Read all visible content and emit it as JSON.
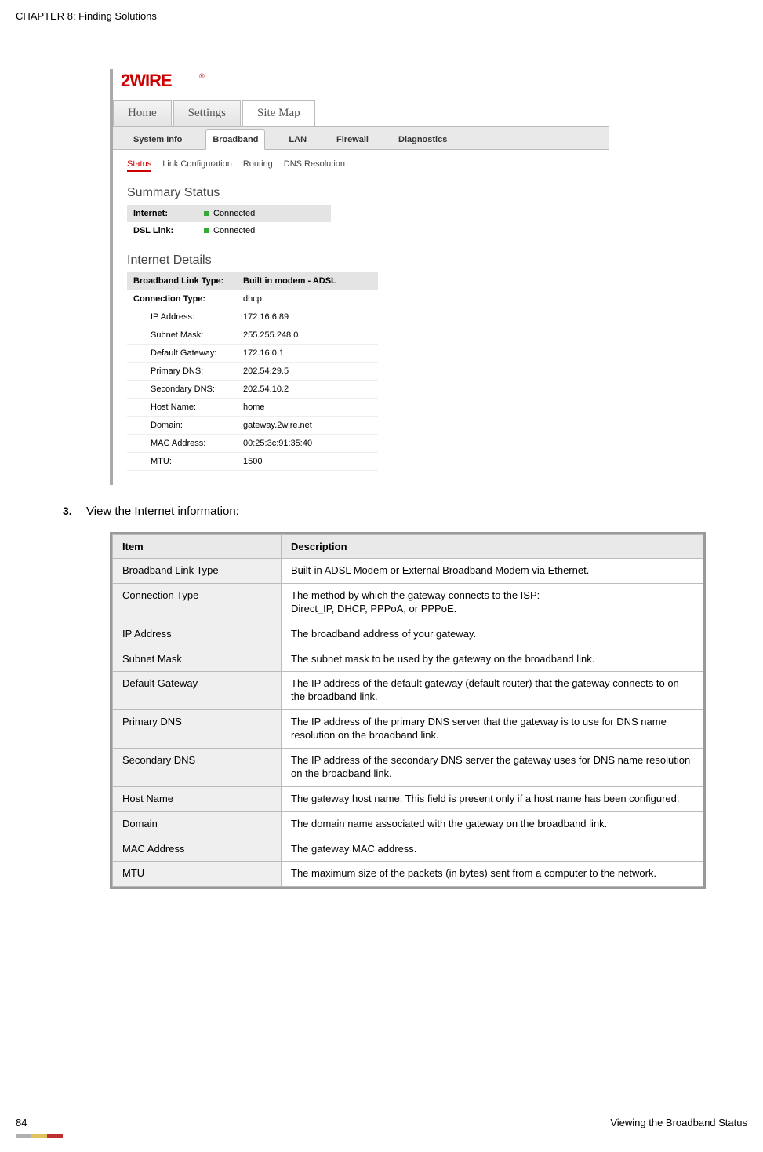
{
  "chapter_header": "CHAPTER 8: Finding Solutions",
  "logo_text": "2WIRE",
  "logo_color": "#cc0000",
  "top_tabs": {
    "home": "Home",
    "settings": "Settings",
    "sitemap": "Site Map"
  },
  "sub_tabs": {
    "system_info": "System Info",
    "broadband": "Broadband",
    "lan": "LAN",
    "firewall": "Firewall",
    "diagnostics": "Diagnostics"
  },
  "mini_tabs": {
    "status": "Status",
    "link_config": "Link Configuration",
    "routing": "Routing",
    "dns": "DNS Resolution"
  },
  "summary_title": "Summary Status",
  "summary": {
    "internet_label": "Internet:",
    "internet_value": "Connected",
    "dsl_label": "DSL Link:",
    "dsl_value": "Connected"
  },
  "details_title": "Internet Details",
  "details": {
    "blt_label": "Broadband Link Type:",
    "blt_value": "Built in modem - ADSL",
    "ct_label": "Connection Type:",
    "ct_value": "dhcp",
    "ip_label": "IP Address:",
    "ip_value": "172.16.6.89",
    "mask_label": "Subnet Mask:",
    "mask_value": "255.255.248.0",
    "gw_label": "Default Gateway:",
    "gw_value": "172.16.0.1",
    "pdns_label": "Primary DNS:",
    "pdns_value": "202.54.29.5",
    "sdns_label": "Secondary DNS:",
    "sdns_value": "202.54.10.2",
    "host_label": "Host Name:",
    "host_value": "home",
    "domain_label": "Domain:",
    "domain_value": "gateway.2wire.net",
    "mac_label": "MAC Address:",
    "mac_value": "00:25:3c:91:35:40",
    "mtu_label": "MTU:",
    "mtu_value": "1500"
  },
  "step": {
    "number": "3.",
    "text": "View the Internet information:"
  },
  "table": {
    "header_item": "Item",
    "header_desc": "Description",
    "rows": [
      {
        "item": "Broadband Link Type",
        "desc": "Built-in ADSL Modem or External Broadband Modem via Ethernet."
      },
      {
        "item": "Connection Type",
        "desc": "The method by which the gateway connects to the ISP:\nDirect_IP, DHCP, PPPoA, or PPPoE."
      },
      {
        "item": "IP Address",
        "desc": "The broadband address of your gateway."
      },
      {
        "item": "Subnet Mask",
        "desc": "The subnet mask to be used by the gateway on the broadband link."
      },
      {
        "item": "Default Gateway",
        "desc": "The IP address of the default gateway (default router) that the gateway connects to on the broadband link."
      },
      {
        "item": "Primary DNS",
        "desc": "The IP address of the primary DNS server that the gateway is to use for DNS name resolution on the broadband link."
      },
      {
        "item": "Secondary DNS",
        "desc": "The IP address of the secondary DNS server the gateway uses for DNS name resolution on the broadband link."
      },
      {
        "item": "Host Name",
        "desc": "The gateway host name. This field is present only if a host name has been configured."
      },
      {
        "item": "Domain",
        "desc": "The domain name associated with the gateway on the broadband link."
      },
      {
        "item": "MAC Address",
        "desc": "The gateway MAC address."
      },
      {
        "item": "MTU",
        "desc": "The maximum size of the packets (in bytes) sent from a computer to the network."
      }
    ]
  },
  "footer": {
    "page_number": "84",
    "section_title": "Viewing the Broadband Status"
  },
  "footer_bar_colors": [
    "#b0b0b0",
    "#e0c060",
    "#c03030"
  ]
}
